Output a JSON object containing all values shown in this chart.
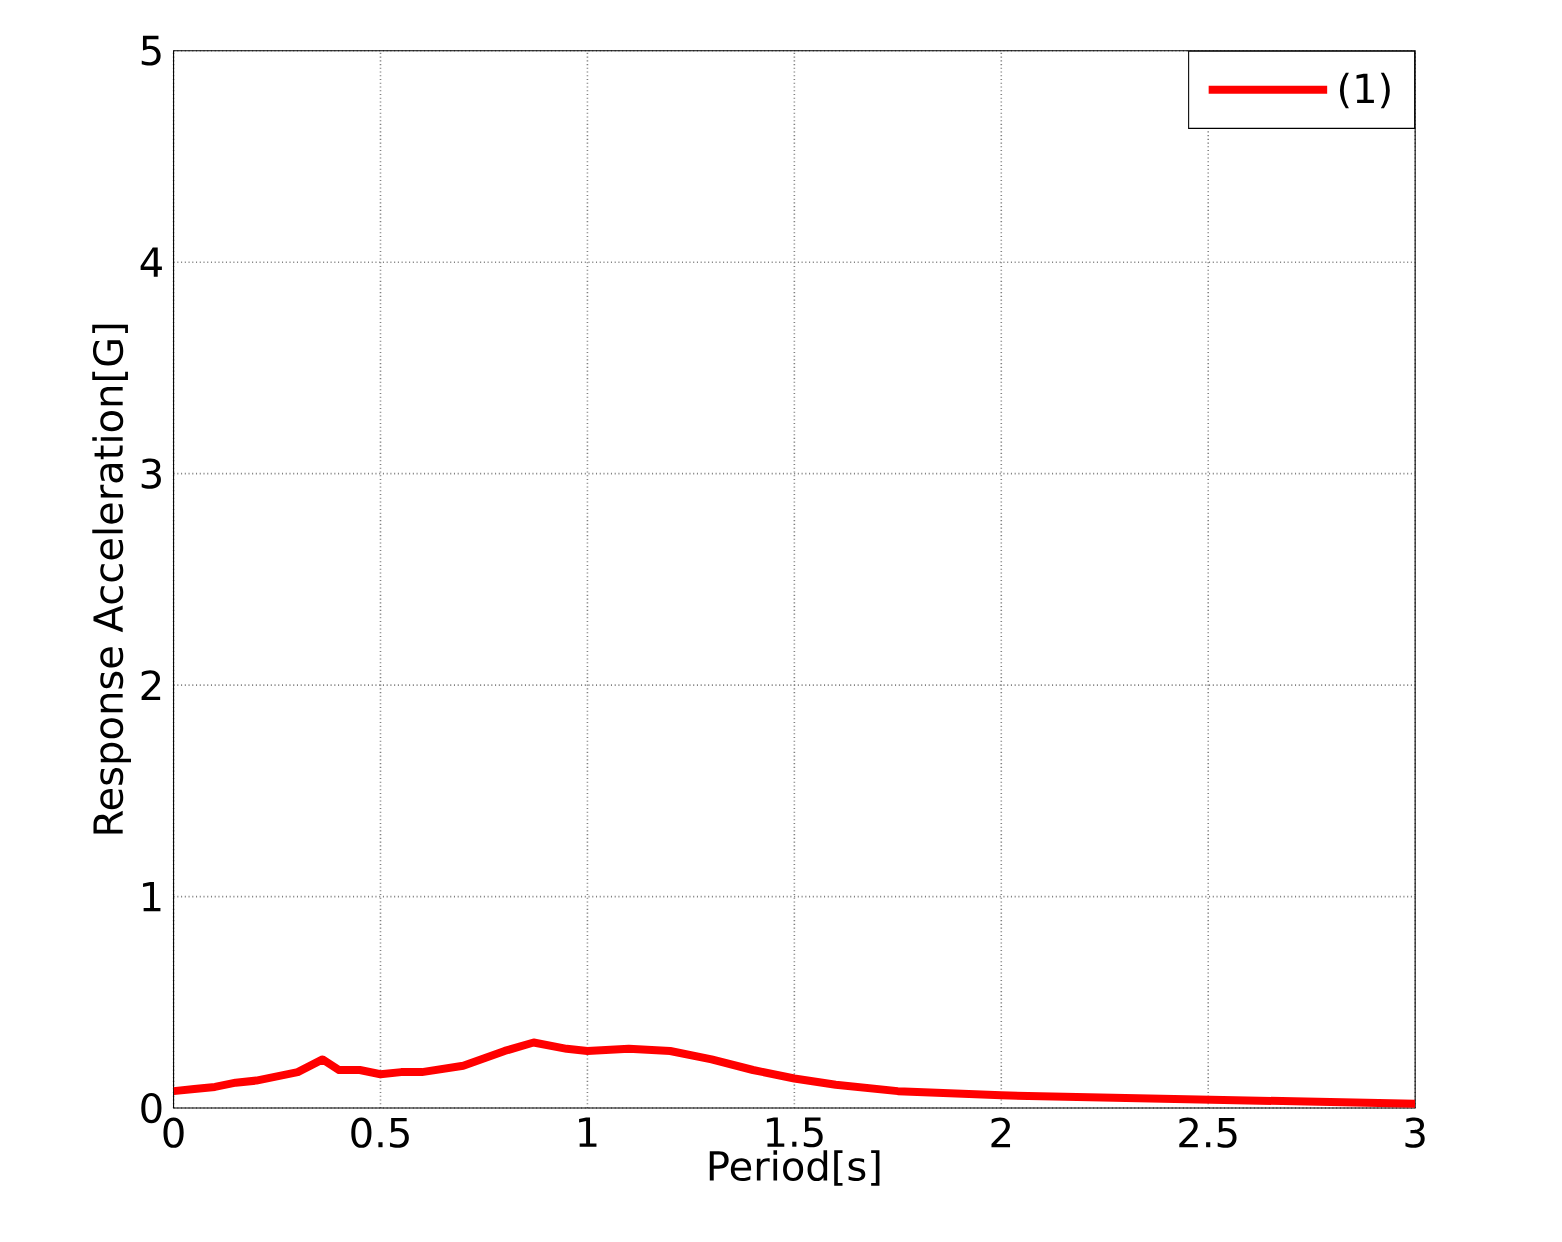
{
  "chart_data": {
    "type": "line",
    "xlabel": "Period[s]",
    "ylabel": "Response Acceleration[G]",
    "x": [
      0,
      0.05,
      0.1,
      0.15,
      0.2,
      0.25,
      0.3,
      0.36,
      0.4,
      0.45,
      0.5,
      0.55,
      0.6,
      0.7,
      0.8,
      0.87,
      0.95,
      1.0,
      1.1,
      1.2,
      1.3,
      1.4,
      1.5,
      1.6,
      1.75,
      2.0,
      2.25,
      2.5,
      2.75,
      3.0
    ],
    "series": [
      {
        "name": "(1)",
        "color": "#ff0000",
        "values": [
          0.08,
          0.09,
          0.1,
          0.12,
          0.13,
          0.15,
          0.17,
          0.23,
          0.18,
          0.18,
          0.16,
          0.17,
          0.17,
          0.2,
          0.27,
          0.31,
          0.28,
          0.27,
          0.28,
          0.27,
          0.23,
          0.18,
          0.14,
          0.11,
          0.08,
          0.06,
          0.05,
          0.04,
          0.03,
          0.02
        ]
      }
    ],
    "xlim": [
      0,
      3
    ],
    "ylim": [
      0,
      5
    ],
    "xticks": [
      0,
      0.5,
      1,
      1.5,
      2,
      2.5,
      3
    ],
    "yticks": [
      0,
      1,
      2,
      3,
      4,
      5
    ],
    "grid": true,
    "legend": "top right",
    "marker": "none",
    "line_style": "solid"
  }
}
